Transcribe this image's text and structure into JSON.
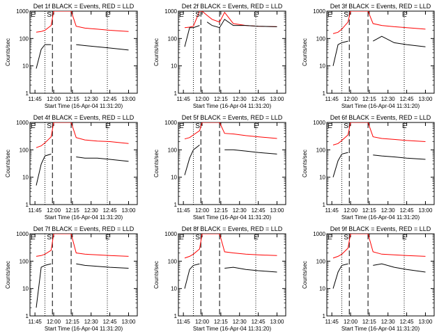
{
  "colors": {
    "background": "#ffffff",
    "axes": "#000000",
    "events": "#000000",
    "lld": "#ff0000"
  },
  "chart_data": [
    {
      "type": "line",
      "title": "Det 1f BLACK = Events, RED = LLD",
      "xlabel": "Start Time (16-Apr-04 11:31:20)",
      "ylabel": "Counts/sec",
      "yscale": "log",
      "ylim": [
        1,
        1000
      ],
      "xticks": [
        "11:45",
        "12:00",
        "12:15",
        "12:30",
        "12:45",
        "13:00"
      ],
      "yticks": [
        "1",
        "10",
        "100",
        "1000"
      ],
      "markers": [
        "S",
        "E"
      ],
      "marker_lines_dotted": [
        "11:53",
        "12:43"
      ],
      "marker_lines_dashed": [
        "11:59",
        "12:14"
      ],
      "x": [
        "11:46",
        "11:50",
        "11:53",
        "11:58",
        "12:00",
        "12:04",
        "12:08",
        "12:14",
        "12:18",
        "12:25",
        "12:35",
        "12:45",
        "13:00"
      ],
      "series": [
        {
          "name": "LLD",
          "values": [
            170,
            180,
            200,
            300,
            1000,
            1000,
            1000,
            1000,
            280,
            240,
            220,
            200,
            180
          ]
        },
        {
          "name": "Events",
          "values": [
            8,
            40,
            60,
            60,
            null,
            null,
            null,
            null,
            60,
            55,
            50,
            45,
            38
          ]
        }
      ]
    },
    {
      "type": "line",
      "title": "Det 2f BLACK = Events, RED = LLD",
      "xlabel": "Start Time (16-Apr-04 11:31:20)",
      "ylabel": "Counts/sec",
      "yscale": "log",
      "ylim": [
        1,
        1000
      ],
      "xticks": [
        "11:45",
        "12:00",
        "12:15",
        "12:30",
        "12:45",
        "13:00"
      ],
      "yticks": [
        "1",
        "10",
        "100",
        "1000"
      ],
      "markers": [
        "S",
        "E"
      ],
      "marker_lines_dotted": [
        "11:53",
        "12:43"
      ],
      "marker_lines_dashed": [
        "11:59",
        "12:14"
      ],
      "x": [
        "11:46",
        "11:50",
        "11:53",
        "11:58",
        "12:00",
        "12:04",
        "12:08",
        "12:14",
        "12:18",
        "12:25",
        "12:35",
        "12:45",
        "13:00"
      ],
      "series": [
        {
          "name": "LLD",
          "values": [
            250,
            260,
            280,
            1000,
            1000,
            700,
            500,
            400,
            900,
            350,
            300,
            280,
            270
          ]
        },
        {
          "name": "Events",
          "values": [
            50,
            250,
            250,
            300,
            null,
            400,
            300,
            250,
            500,
            300,
            300,
            280,
            270
          ]
        }
      ]
    },
    {
      "type": "line",
      "title": "Det 3f BLACK = Events, RED = LLD",
      "xlabel": "Start Time (16-Apr-04 11:31:20)",
      "ylabel": "Counts/sec",
      "yscale": "log",
      "ylim": [
        1,
        1000
      ],
      "xticks": [
        "11:45",
        "12:00",
        "12:15",
        "12:30",
        "12:45",
        "13:00"
      ],
      "yticks": [
        "1",
        "10",
        "100",
        "1000"
      ],
      "markers": [
        "S",
        "E"
      ],
      "marker_lines_dotted": [
        "11:53",
        "12:43"
      ],
      "marker_lines_dashed": [
        "11:59",
        "12:14"
      ],
      "x": [
        "11:46",
        "11:50",
        "11:53",
        "11:58",
        "12:00",
        "12:04",
        "12:08",
        "12:14",
        "12:18",
        "12:25",
        "12:35",
        "12:45",
        "13:00"
      ],
      "series": [
        {
          "name": "LLD",
          "values": [
            150,
            170,
            220,
            400,
            1000,
            1000,
            1000,
            1000,
            350,
            300,
            270,
            250,
            220
          ]
        },
        {
          "name": "Events",
          "values": [
            10,
            60,
            70,
            80,
            null,
            null,
            null,
            null,
            80,
            120,
            70,
            60,
            50
          ]
        }
      ]
    },
    {
      "type": "line",
      "title": "Det 4f BLACK = Events, RED = LLD",
      "xlabel": "Start Time (16-Apr-04 11:31:20)",
      "ylabel": "Counts/sec",
      "yscale": "log",
      "ylim": [
        1,
        1000
      ],
      "xticks": [
        "11:45",
        "12:00",
        "12:15",
        "12:30",
        "12:45",
        "13:00"
      ],
      "yticks": [
        "1",
        "10",
        "100",
        "1000"
      ],
      "markers": [
        "S",
        "E"
      ],
      "marker_lines_dotted": [
        "11:53",
        "12:43"
      ],
      "marker_lines_dashed": [
        "11:59",
        "12:14"
      ],
      "x": [
        "11:46",
        "11:50",
        "11:53",
        "11:58",
        "12:00",
        "12:04",
        "12:08",
        "12:14",
        "12:18",
        "12:25",
        "12:35",
        "12:45",
        "13:00"
      ],
      "series": [
        {
          "name": "LLD",
          "values": [
            120,
            140,
            180,
            300,
            1000,
            1000,
            1000,
            1000,
            280,
            230,
            210,
            200,
            170
          ]
        },
        {
          "name": "Events",
          "values": [
            5,
            30,
            60,
            70,
            null,
            null,
            null,
            null,
            55,
            50,
            50,
            45,
            38
          ]
        }
      ]
    },
    {
      "type": "line",
      "title": "Det 5f BLACK = Events, RED = LLD",
      "xlabel": "Start Time (16-Apr-04 11:31:20)",
      "ylabel": "Counts/sec",
      "yscale": "log",
      "ylim": [
        1,
        1000
      ],
      "xticks": [
        "11:45",
        "12:00",
        "12:15",
        "12:30",
        "12:45",
        "13:00"
      ],
      "yticks": [
        "1",
        "10",
        "100",
        "1000"
      ],
      "markers": [
        "S",
        "E"
      ],
      "marker_lines_dotted": [
        "11:53",
        "12:43"
      ],
      "marker_lines_dashed": [
        "11:59",
        "12:14"
      ],
      "x": [
        "11:46",
        "11:50",
        "11:53",
        "11:58",
        "12:00",
        "12:04",
        "12:08",
        "12:14",
        "12:18",
        "12:25",
        "12:35",
        "12:45",
        "13:00"
      ],
      "series": [
        {
          "name": "LLD",
          "values": [
            250,
            280,
            350,
            500,
            1000,
            1000,
            1000,
            1000,
            400,
            380,
            330,
            300,
            260
          ]
        },
        {
          "name": "Events",
          "values": [
            12,
            50,
            100,
            150,
            null,
            null,
            null,
            null,
            100,
            100,
            90,
            80,
            70
          ]
        }
      ]
    },
    {
      "type": "line",
      "title": "Det 6f BLACK = Events, RED = LLD",
      "xlabel": "Start Time (16-Apr-04 11:31:20)",
      "ylabel": "Counts/sec",
      "yscale": "log",
      "ylim": [
        1,
        1000
      ],
      "xticks": [
        "11:45",
        "12:00",
        "12:15",
        "12:30",
        "12:45",
        "13:00"
      ],
      "yticks": [
        "1",
        "10",
        "100",
        "1000"
      ],
      "markers": [
        "S",
        "E"
      ],
      "marker_lines_dotted": [
        "11:53",
        "12:43"
      ],
      "marker_lines_dashed": [
        "11:59",
        "12:14"
      ],
      "x": [
        "11:46",
        "11:50",
        "11:53",
        "11:58",
        "12:00",
        "12:04",
        "12:08",
        "12:14",
        "12:18",
        "12:25",
        "12:35",
        "12:45",
        "13:00"
      ],
      "series": [
        {
          "name": "LLD",
          "values": [
            150,
            170,
            220,
            350,
            1000,
            1000,
            1000,
            1000,
            300,
            260,
            240,
            220,
            200
          ]
        },
        {
          "name": "Events",
          "values": [
            10,
            40,
            70,
            80,
            null,
            null,
            null,
            null,
            65,
            60,
            55,
            50,
            45
          ]
        }
      ]
    },
    {
      "type": "line",
      "title": "Det 7f BLACK = Events, RED = LLD",
      "xlabel": "Start Time (16-Apr-04 11:31:20)",
      "ylabel": "Counts/sec",
      "yscale": "log",
      "ylim": [
        1,
        1000
      ],
      "xticks": [
        "11:45",
        "12:00",
        "12:15",
        "12:30",
        "12:45",
        "13:00"
      ],
      "yticks": [
        "1",
        "10",
        "100",
        "1000"
      ],
      "markers": [
        "S",
        "E"
      ],
      "marker_lines_dotted": [
        "11:53",
        "12:43"
      ],
      "marker_lines_dashed": [
        "11:59",
        "12:14"
      ],
      "x": [
        "11:46",
        "11:50",
        "11:53",
        "11:58",
        "12:00",
        "12:04",
        "12:08",
        "12:14",
        "12:18",
        "12:25",
        "12:35",
        "12:45",
        "13:00"
      ],
      "series": [
        {
          "name": "LLD",
          "values": [
            150,
            160,
            180,
            250,
            1000,
            1000,
            1000,
            1000,
            200,
            180,
            170,
            160,
            150
          ]
        },
        {
          "name": "Events",
          "values": [
            2,
            60,
            70,
            80,
            null,
            null,
            null,
            null,
            80,
            70,
            65,
            60,
            55
          ]
        }
      ]
    },
    {
      "type": "line",
      "title": "Det 8f BLACK = Events, RED = LLD",
      "xlabel": "Start Time (16-Apr-04 11:31:20)",
      "ylabel": "Counts/sec",
      "yscale": "log",
      "ylim": [
        1,
        1000
      ],
      "xticks": [
        "11:45",
        "12:00",
        "12:15",
        "12:30",
        "12:45",
        "13:00"
      ],
      "yticks": [
        "1",
        "10",
        "100",
        "1000"
      ],
      "markers": [
        "S",
        "E"
      ],
      "marker_lines_dotted": [
        "11:53",
        "12:43"
      ],
      "marker_lines_dashed": [
        "11:59",
        "12:14"
      ],
      "x": [
        "11:46",
        "11:50",
        "11:53",
        "11:58",
        "12:00",
        "12:04",
        "12:08",
        "12:14",
        "12:18",
        "12:25",
        "12:35",
        "12:45",
        "13:00"
      ],
      "series": [
        {
          "name": "LLD",
          "values": [
            130,
            150,
            180,
            280,
            1000,
            1000,
            1000,
            1000,
            220,
            200,
            180,
            170,
            160
          ]
        },
        {
          "name": "Events",
          "values": [
            10,
            50,
            70,
            80,
            null,
            null,
            null,
            null,
            55,
            60,
            50,
            45,
            40
          ]
        }
      ]
    },
    {
      "type": "line",
      "title": "Det 9f BLACK = Events, RED = LLD",
      "xlabel": "Start Time (16-Apr-04 11:31:20)",
      "ylabel": "Counts/sec",
      "yscale": "log",
      "ylim": [
        1,
        1000
      ],
      "xticks": [
        "11:45",
        "12:00",
        "12:15",
        "12:30",
        "12:45",
        "13:00"
      ],
      "yticks": [
        "1",
        "10",
        "100",
        "1000"
      ],
      "markers": [
        "S",
        "E"
      ],
      "marker_lines_dotted": [
        "11:53",
        "12:43"
      ],
      "marker_lines_dashed": [
        "11:59",
        "12:14"
      ],
      "x": [
        "11:46",
        "11:50",
        "11:53",
        "11:58",
        "12:00",
        "12:04",
        "12:08",
        "12:14",
        "12:18",
        "12:25",
        "12:35",
        "12:45",
        "13:00"
      ],
      "series": [
        {
          "name": "LLD",
          "values": [
            130,
            150,
            180,
            300,
            1000,
            1000,
            1000,
            1000,
            220,
            180,
            170,
            160,
            150
          ]
        },
        {
          "name": "Events",
          "values": [
            10,
            40,
            70,
            80,
            null,
            null,
            null,
            null,
            70,
            80,
            60,
            50,
            40
          ]
        }
      ]
    }
  ]
}
